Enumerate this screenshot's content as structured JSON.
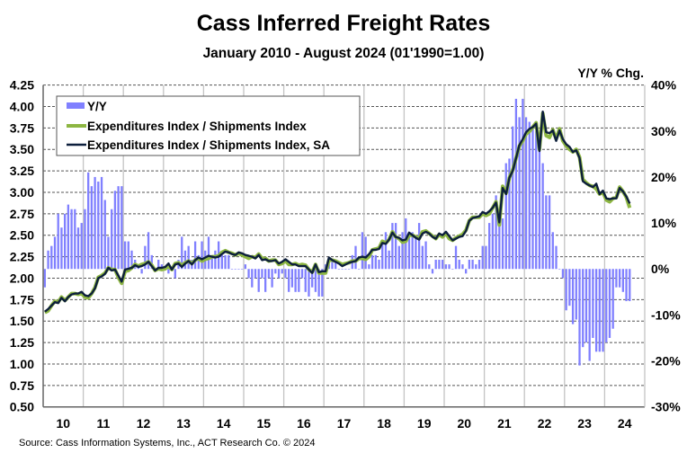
{
  "chart_data": {
    "type": "line",
    "title": "Cass Inferred Freight Rates",
    "subtitle": "January 2010 - August 2024 (01'1990=1.00)",
    "right_axis_label": "Y/Y % Chg.",
    "source": "Source: Cass Information Systems, Inc., ACT Research Co. © 2024",
    "x_start": "2010-01",
    "x_end": "2024-08",
    "x_tick_labels": [
      "10",
      "11",
      "12",
      "13",
      "14",
      "15",
      "16",
      "17",
      "18",
      "19",
      "20",
      "21",
      "22",
      "23",
      "24"
    ],
    "left_axis": {
      "ylim": [
        0.5,
        4.25
      ],
      "tick_labels": [
        "4.25",
        "4.00",
        "3.75",
        "3.50",
        "3.25",
        "3.00",
        "2.75",
        "2.50",
        "2.25",
        "2.00",
        "1.75",
        "1.50",
        "1.25",
        "1.00",
        "0.75",
        "0.50"
      ]
    },
    "right_axis": {
      "ylim": [
        -30,
        40
      ],
      "unit": "%",
      "tick_labels": [
        "40%",
        "30%",
        "20%",
        "10%",
        "0%",
        "-10%",
        "-20%",
        "-30%"
      ]
    },
    "grid": {
      "horizontal": "dashed",
      "vertical": "solid"
    },
    "legend_placement": "top-left",
    "series": [
      {
        "name": "Y/Y",
        "type": "bar",
        "axis": "right",
        "color": "#8080ff",
        "values": [
          -4,
          4,
          5,
          7,
          12,
          9,
          12,
          14,
          13,
          13,
          9,
          10,
          13,
          21,
          18,
          20,
          19,
          20,
          15,
          7,
          13,
          17,
          18,
          18,
          6,
          6,
          4,
          2,
          1,
          -1,
          5,
          8,
          3,
          0,
          2,
          1,
          0,
          -1,
          0,
          -2,
          2,
          7,
          4,
          5,
          2,
          6,
          3,
          6,
          4,
          7,
          3,
          4,
          6,
          3,
          3,
          3,
          0,
          0,
          0,
          0,
          1,
          -2,
          -4,
          -2,
          -5,
          -2,
          -5,
          -2,
          -4,
          -1,
          -2,
          -1,
          -2,
          -5,
          -4,
          -5,
          -5,
          -2,
          -5,
          -6,
          -4,
          -5,
          -6,
          -6,
          1,
          1,
          2,
          2,
          0,
          0,
          0,
          0,
          3,
          5,
          0,
          8,
          7,
          1,
          3,
          3,
          2,
          6,
          8,
          4,
          10,
          10,
          5,
          8,
          11,
          8,
          8,
          7,
          10,
          5,
          6,
          1,
          -1,
          2,
          2,
          2,
          1,
          1,
          0,
          5,
          2,
          1,
          -1,
          2,
          2,
          1,
          2,
          5,
          5,
          10,
          12,
          16,
          13,
          11,
          23,
          24,
          31,
          37,
          33,
          37,
          33,
          32,
          31,
          30,
          27,
          23,
          16,
          16,
          8,
          5,
          0,
          -2,
          -9,
          -8,
          -12,
          -11,
          -21,
          -17,
          -16,
          -20,
          -15,
          -18,
          -18,
          -18,
          -16,
          -15,
          -13,
          -4,
          -4,
          -5,
          -7,
          -7
        ]
      },
      {
        "name": "Expenditures Index / Shipments Index",
        "type": "line",
        "axis": "left",
        "color": "#8db642",
        "values": [
          1.6,
          1.62,
          1.68,
          1.73,
          1.72,
          1.78,
          1.74,
          1.78,
          1.82,
          1.82,
          1.81,
          1.82,
          1.78,
          1.77,
          1.82,
          1.89,
          2.01,
          2.03,
          2.06,
          2.12,
          2.1,
          2.1,
          2.01,
          1.94,
          2.08,
          2.09,
          2.12,
          2.16,
          2.14,
          2.16,
          2.17,
          2.19,
          2.15,
          2.09,
          2.11,
          2.1,
          2.11,
          2.14,
          2.1,
          2.17,
          2.18,
          2.15,
          2.18,
          2.2,
          2.17,
          2.21,
          2.23,
          2.2,
          2.22,
          2.23,
          2.25,
          2.25,
          2.26,
          2.3,
          2.32,
          2.3,
          2.29,
          2.27,
          2.29,
          2.27,
          2.25,
          2.23,
          2.25,
          2.24,
          2.28,
          2.23,
          2.23,
          2.2,
          2.21,
          2.21,
          2.16,
          2.17,
          2.2,
          2.16,
          2.16,
          2.17,
          2.15,
          2.16,
          2.15,
          2.1,
          2.07,
          2.16,
          2.06,
          2.06,
          2.06,
          2.21,
          2.21,
          2.2,
          2.18,
          2.16,
          2.17,
          2.18,
          2.2,
          2.2,
          2.23,
          2.23,
          2.22,
          2.25,
          2.33,
          2.34,
          2.35,
          2.43,
          2.41,
          2.45,
          2.54,
          2.48,
          2.46,
          2.42,
          2.43,
          2.5,
          2.5,
          2.48,
          2.46,
          2.54,
          2.55,
          2.52,
          2.49,
          2.46,
          2.51,
          2.48,
          2.52,
          2.46,
          2.44,
          2.47,
          2.49,
          2.51,
          2.56,
          2.67,
          2.71,
          2.71,
          2.71,
          2.75,
          2.73,
          2.75,
          2.82,
          2.89,
          2.62,
          3.07,
          2.99,
          3.17,
          3.26,
          3.4,
          3.54,
          3.6,
          3.68,
          3.71,
          3.76,
          3.81,
          3.5,
          3.92,
          3.66,
          3.64,
          3.73,
          3.62,
          3.74,
          3.6,
          3.54,
          3.5,
          3.47,
          3.5,
          3.41,
          3.15,
          3.11,
          3.08,
          3.07,
          3.04,
          2.98,
          3.0,
          2.91,
          2.89,
          2.93,
          2.94,
          3.06,
          3.01,
          2.94,
          2.82
        ]
      },
      {
        "name": "Expenditures Index / Shipments Index, SA",
        "type": "line",
        "axis": "left",
        "color": "#0d1f3c",
        "values": [
          1.61,
          1.64,
          1.68,
          1.72,
          1.71,
          1.77,
          1.73,
          1.78,
          1.81,
          1.82,
          1.82,
          1.84,
          1.8,
          1.79,
          1.82,
          1.88,
          2.0,
          2.02,
          2.05,
          2.12,
          2.09,
          2.1,
          2.03,
          1.96,
          2.1,
          2.11,
          2.12,
          2.15,
          2.13,
          2.14,
          2.16,
          2.19,
          2.14,
          2.09,
          2.12,
          2.12,
          2.13,
          2.17,
          2.1,
          2.16,
          2.17,
          2.13,
          2.17,
          2.2,
          2.16,
          2.21,
          2.24,
          2.22,
          2.24,
          2.26,
          2.25,
          2.24,
          2.25,
          2.28,
          2.31,
          2.3,
          2.28,
          2.27,
          2.3,
          2.29,
          2.27,
          2.26,
          2.25,
          2.23,
          2.27,
          2.21,
          2.22,
          2.2,
          2.2,
          2.21,
          2.17,
          2.19,
          2.22,
          2.19,
          2.16,
          2.16,
          2.14,
          2.14,
          2.14,
          2.1,
          2.06,
          2.16,
          2.07,
          2.08,
          2.08,
          2.24,
          2.21,
          2.19,
          2.17,
          2.14,
          2.16,
          2.18,
          2.19,
          2.2,
          2.24,
          2.25,
          2.24,
          2.28,
          2.33,
          2.33,
          2.34,
          2.41,
          2.4,
          2.45,
          2.53,
          2.48,
          2.47,
          2.44,
          2.45,
          2.53,
          2.5,
          2.47,
          2.45,
          2.52,
          2.54,
          2.52,
          2.48,
          2.46,
          2.52,
          2.5,
          2.54,
          2.49,
          2.44,
          2.46,
          2.48,
          2.49,
          2.55,
          2.67,
          2.7,
          2.71,
          2.72,
          2.77,
          2.75,
          2.78,
          2.82,
          2.88,
          2.65,
          3.05,
          2.98,
          3.17,
          3.25,
          3.4,
          3.55,
          3.62,
          3.7,
          3.74,
          3.76,
          3.8,
          3.48,
          3.94,
          3.7,
          3.69,
          3.72,
          3.6,
          3.72,
          3.62,
          3.56,
          3.53,
          3.47,
          3.49,
          3.4,
          3.13,
          3.1,
          3.08,
          3.06,
          3.1,
          2.98,
          3.02,
          2.93,
          2.92,
          2.93,
          2.93,
          3.05,
          3.01,
          2.95,
          2.87
        ]
      }
    ]
  }
}
